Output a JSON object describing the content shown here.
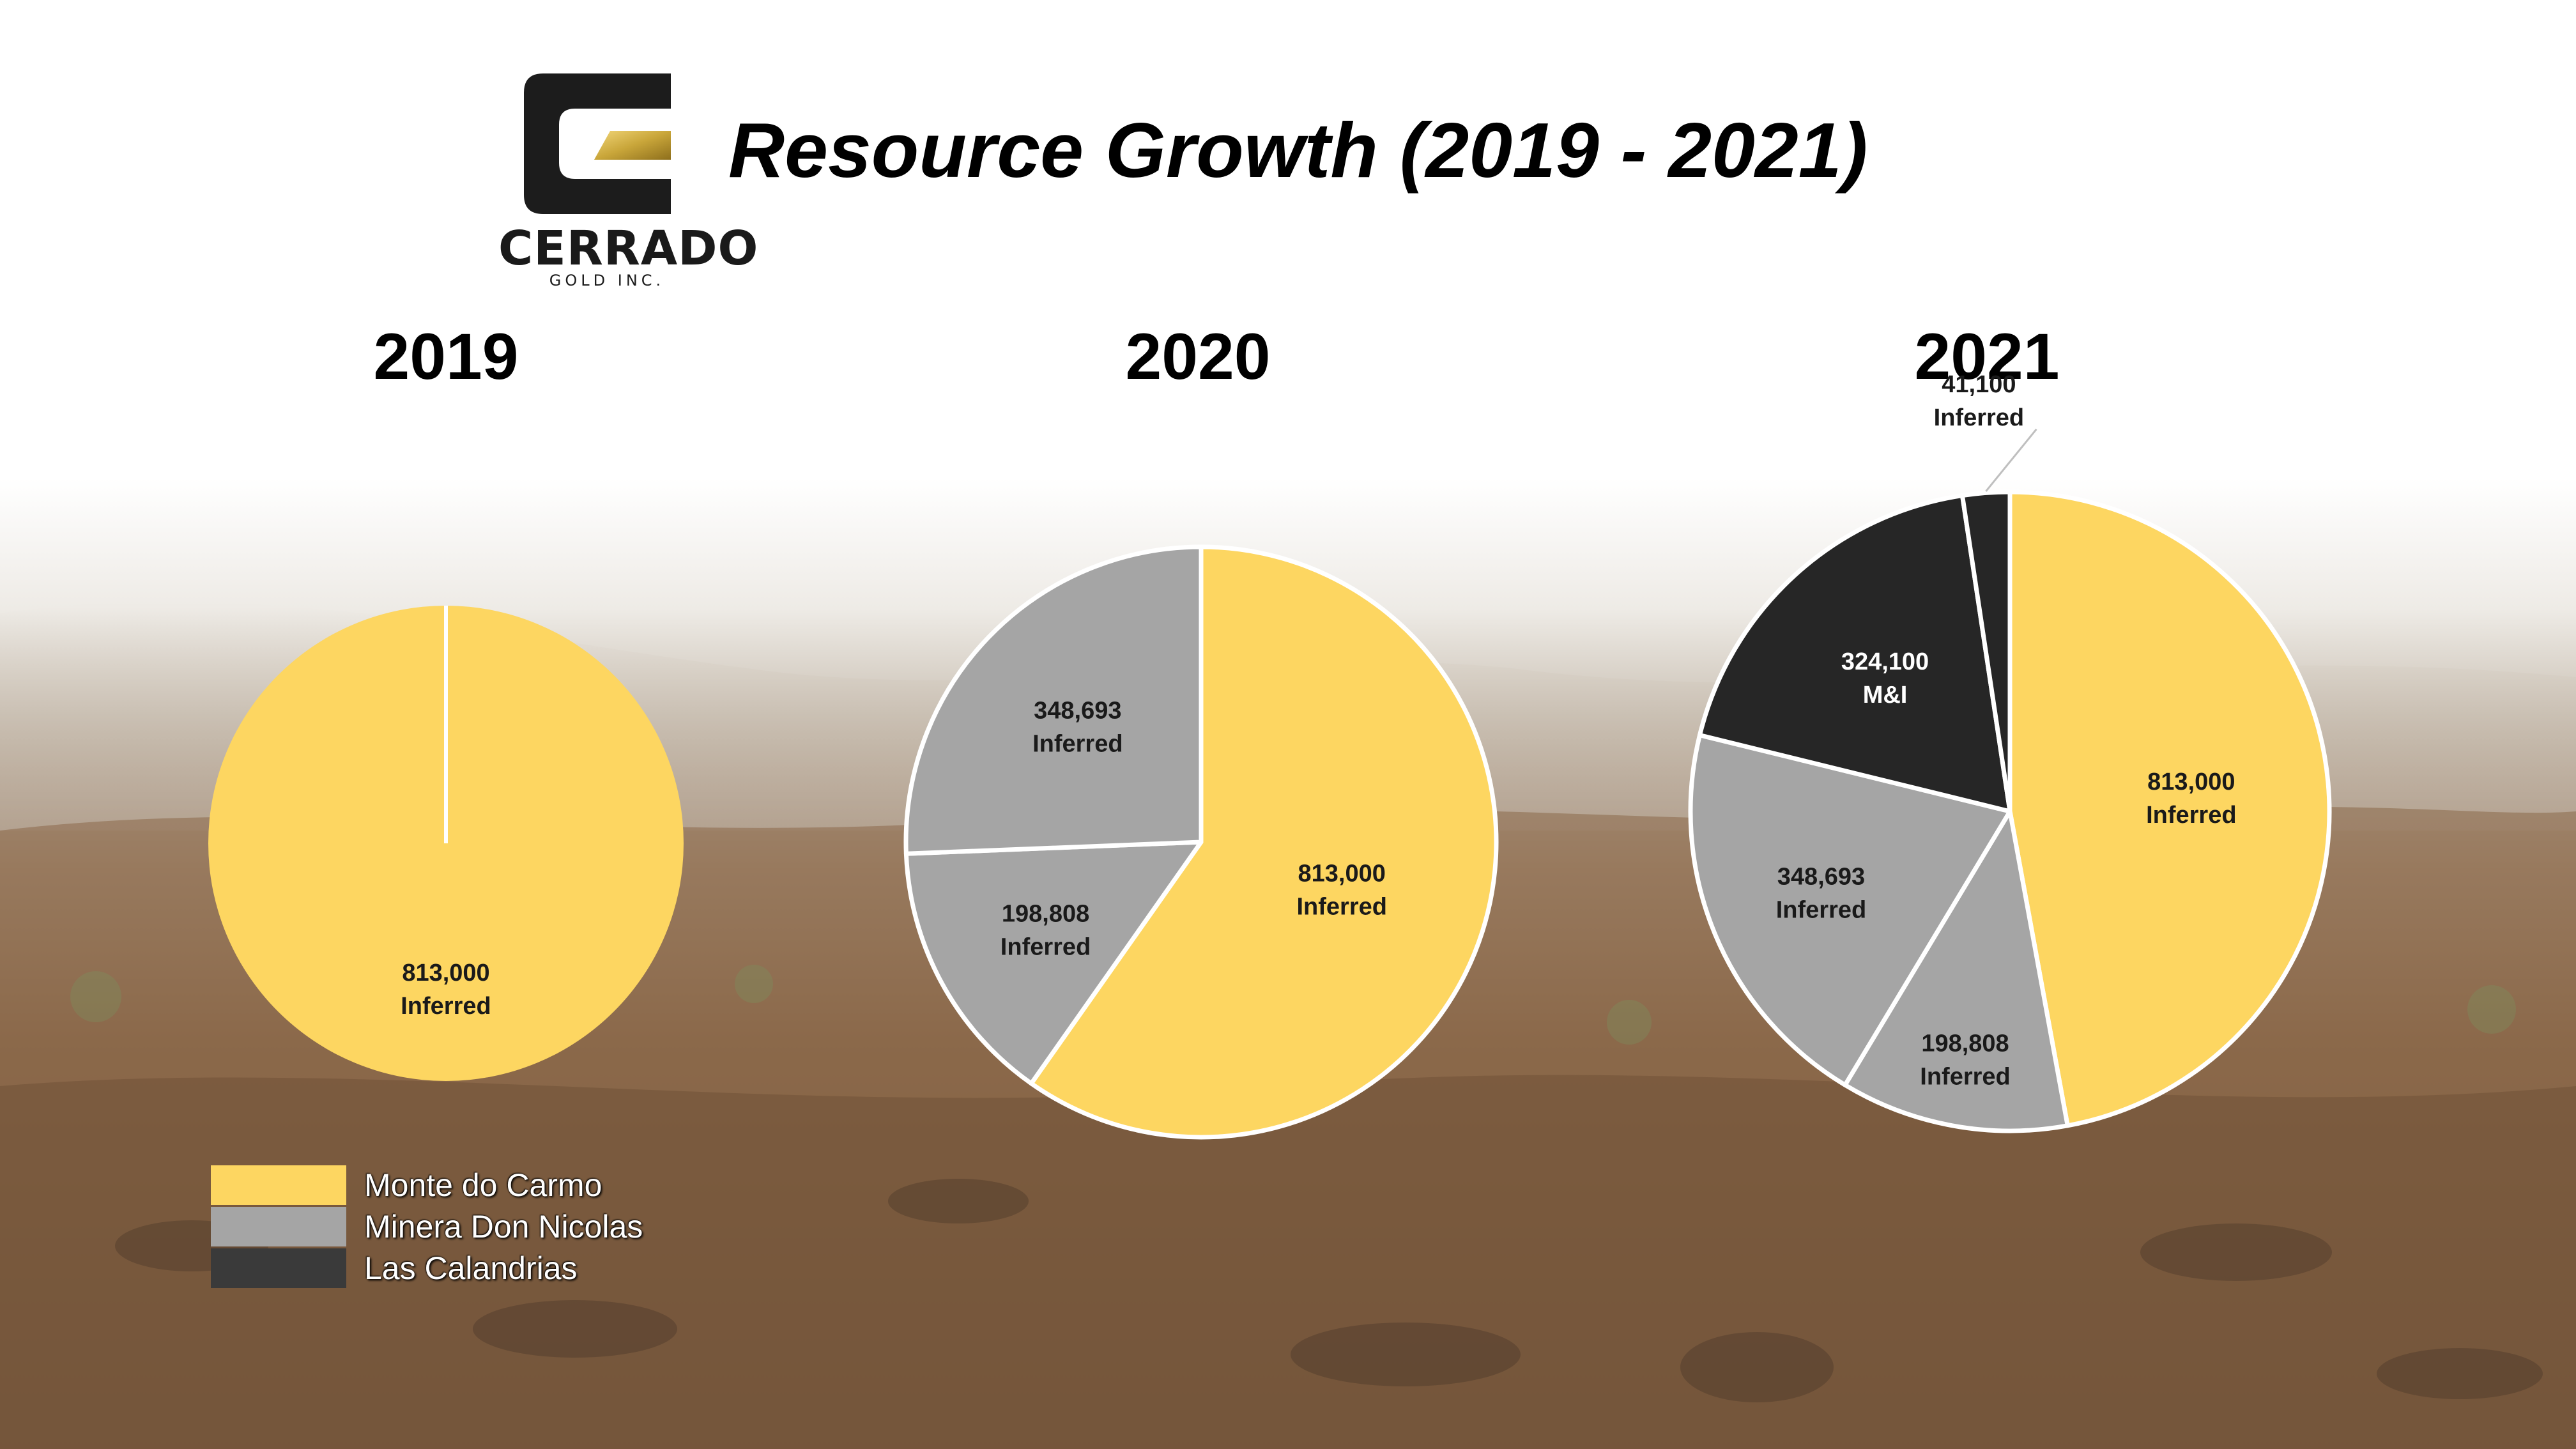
{
  "title": "Resource Growth (2019 - 2021)",
  "logo": {
    "word": "CERRADO",
    "sub": "GOLD INC."
  },
  "colors": {
    "monte_do_carmo": "#FDD661",
    "minera_don_nicolas": "#A5A5A5",
    "las_calandrias": "#262626",
    "separator": "#ffffff"
  },
  "legend": [
    {
      "label": "Monte do Carmo",
      "color": "#FDD661"
    },
    {
      "label": "Minera Don Nicolas",
      "color": "#A5A5A5"
    },
    {
      "label": "Las Calandrias",
      "color": "#3A3A3A"
    }
  ],
  "chart_data": [
    {
      "type": "pie",
      "title": "2019",
      "slices": [
        {
          "project": "Monte do Carmo",
          "value": 813000,
          "label_value": "813,000",
          "label_category": "Inferred",
          "color": "#FDD661"
        }
      ]
    },
    {
      "type": "pie",
      "title": "2020",
      "slices": [
        {
          "project": "Monte do Carmo",
          "value": 813000,
          "label_value": "813,000",
          "label_category": "Inferred",
          "color": "#FDD661"
        },
        {
          "project": "Minera Don Nicolas",
          "value": 198808,
          "label_value": "198,808",
          "label_category": "Inferred",
          "color": "#A5A5A5"
        },
        {
          "project": "Minera Don Nicolas",
          "value": 348693,
          "label_value": "348,693",
          "label_category": "Inferred",
          "color": "#A5A5A5"
        }
      ]
    },
    {
      "type": "pie",
      "title": "2021",
      "slices": [
        {
          "project": "Monte do Carmo",
          "value": 813000,
          "label_value": "813,000",
          "label_category": "Inferred",
          "color": "#FDD661"
        },
        {
          "project": "Minera Don Nicolas",
          "value": 198808,
          "label_value": "198,808",
          "label_category": "Inferred",
          "color": "#A5A5A5"
        },
        {
          "project": "Minera Don Nicolas",
          "value": 348693,
          "label_value": "348,693",
          "label_category": "Inferred",
          "color": "#A5A5A5"
        },
        {
          "project": "Las Calandrias",
          "value": 324100,
          "label_value": "324,100",
          "label_category": "M&I",
          "color": "#262626"
        },
        {
          "project": "Las Calandrias",
          "value": 41100,
          "label_value": "41,100",
          "label_category": "Inferred",
          "color": "#262626"
        }
      ]
    }
  ]
}
